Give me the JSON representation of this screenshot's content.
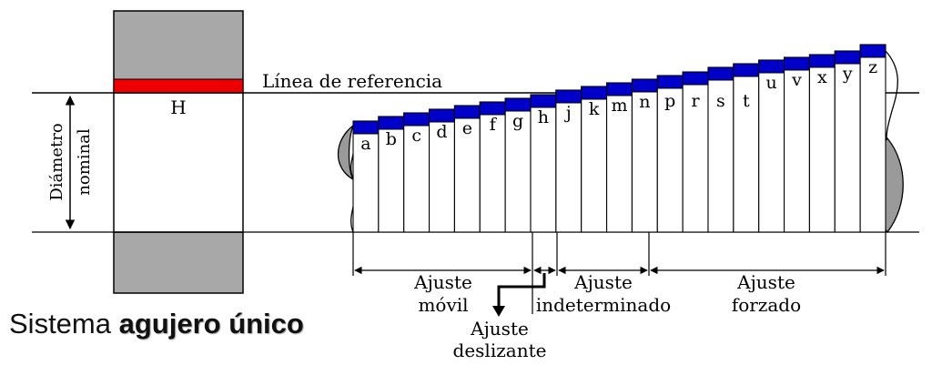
{
  "diagram": {
    "reference_line_label": "Línea de referencia",
    "hole_label": "H",
    "nominal_label_line1": "Diámetro",
    "nominal_label_line2": "nominal",
    "shaft_letters": [
      "a",
      "b",
      "c",
      "d",
      "e",
      "f",
      "g",
      "h",
      "j",
      "k",
      "m",
      "n",
      "p",
      "r",
      "s",
      "t",
      "u",
      "v",
      "x",
      "y",
      "z"
    ],
    "fit_groups": [
      {
        "line1": "Ajuste",
        "line2": "móvil"
      },
      {
        "line1": "Ajuste",
        "line2": "indeterminado"
      },
      {
        "line1": "Ajuste",
        "line2": "forzado"
      }
    ],
    "sliding_fit": {
      "line1": "Ajuste",
      "line2": "deslizante"
    },
    "colors": {
      "tolerance_zone": "#0000c8",
      "hole_tolerance": "#ee0000",
      "hole_material": "#a8a8a8",
      "section": "#9a9a9a",
      "line": "#000000"
    }
  },
  "title": {
    "prefix": "Sistema",
    "bold": "agujero único"
  }
}
